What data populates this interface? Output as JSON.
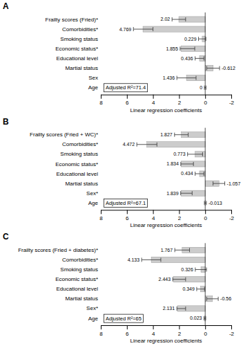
{
  "chart_data": [
    {
      "type": "bar",
      "orientation": "horizontal",
      "title": "A",
      "annotations": [
        "Adjusted R²=71.4"
      ],
      "categories": [
        "Frailty scores (Fried)*",
        "Comorbidities*",
        "Smoking status",
        "Economic status*",
        "Educational level",
        "Martial status",
        "Sex",
        "Age"
      ],
      "values": [
        2.02,
        4.769,
        0.229,
        1.855,
        0.436,
        -0.612,
        1.436,
        0.0
      ],
      "ci_low": [
        1.5,
        4.0,
        -0.05,
        0.8,
        0.1,
        -1.1,
        0.7,
        -0.06
      ],
      "ci_high": [
        2.54,
        5.5,
        0.51,
        1.92,
        0.77,
        -0.12,
        2.17,
        0.06
      ],
      "data_labels": true,
      "color": "#cccccc",
      "x_label": "Linear regression coefficients",
      "xlim": [
        8,
        -2
      ],
      "xticks": [
        8,
        6,
        4,
        2,
        0,
        -2
      ],
      "grid": false
    },
    {
      "type": "bar",
      "orientation": "horizontal",
      "title": "B",
      "annotations": [
        "Adjusted R²=67.1"
      ],
      "categories": [
        "Frailty scores (Fried + WC)*",
        "Comorbidities*",
        "Smoking status",
        "Economic status*",
        "Educational level",
        "Martial status",
        "Sex*",
        "Age"
      ],
      "values": [
        1.827,
        4.472,
        0.773,
        1.834,
        0.434,
        -1.057,
        1.839,
        -0.013
      ],
      "ci_low": [
        1.3,
        3.7,
        0.2,
        0.9,
        0.1,
        -1.5,
        1.0,
        -0.09
      ],
      "ci_high": [
        2.35,
        5.24,
        1.35,
        1.87,
        0.77,
        -0.6,
        1.88,
        0.06
      ],
      "data_labels": true,
      "color": "#cccccc",
      "x_label": "Linear regression coefficients",
      "xlim": [
        8,
        -2
      ],
      "xticks": [
        8,
        6,
        4,
        2,
        0,
        -2
      ],
      "grid": false
    },
    {
      "type": "bar",
      "orientation": "horizontal",
      "title": "C",
      "annotations": [
        "Adjusted R²=65"
      ],
      "categories": [
        "Frailty scores (Fried + diabetes)*",
        "Comorbidities*",
        "Smoking status",
        "Economic status*",
        "Educational level",
        "Martial status",
        "Sex*",
        "Age"
      ],
      "values": [
        1.767,
        4.133,
        0.326,
        2.443,
        0.349,
        -0.56,
        2.131,
        0.023
      ],
      "ci_low": [
        1.2,
        3.4,
        -0.1,
        1.5,
        0.05,
        -1.0,
        1.5,
        -0.04
      ],
      "ci_high": [
        2.33,
        4.87,
        0.76,
        2.49,
        0.65,
        -0.12,
        2.17,
        0.09
      ],
      "data_labels": true,
      "color": "#cccccc",
      "x_label": "Linear regression coefficients",
      "xlim": [
        8,
        -2
      ],
      "xticks": [
        8,
        6,
        4,
        2,
        0,
        -2
      ],
      "grid": false
    }
  ]
}
